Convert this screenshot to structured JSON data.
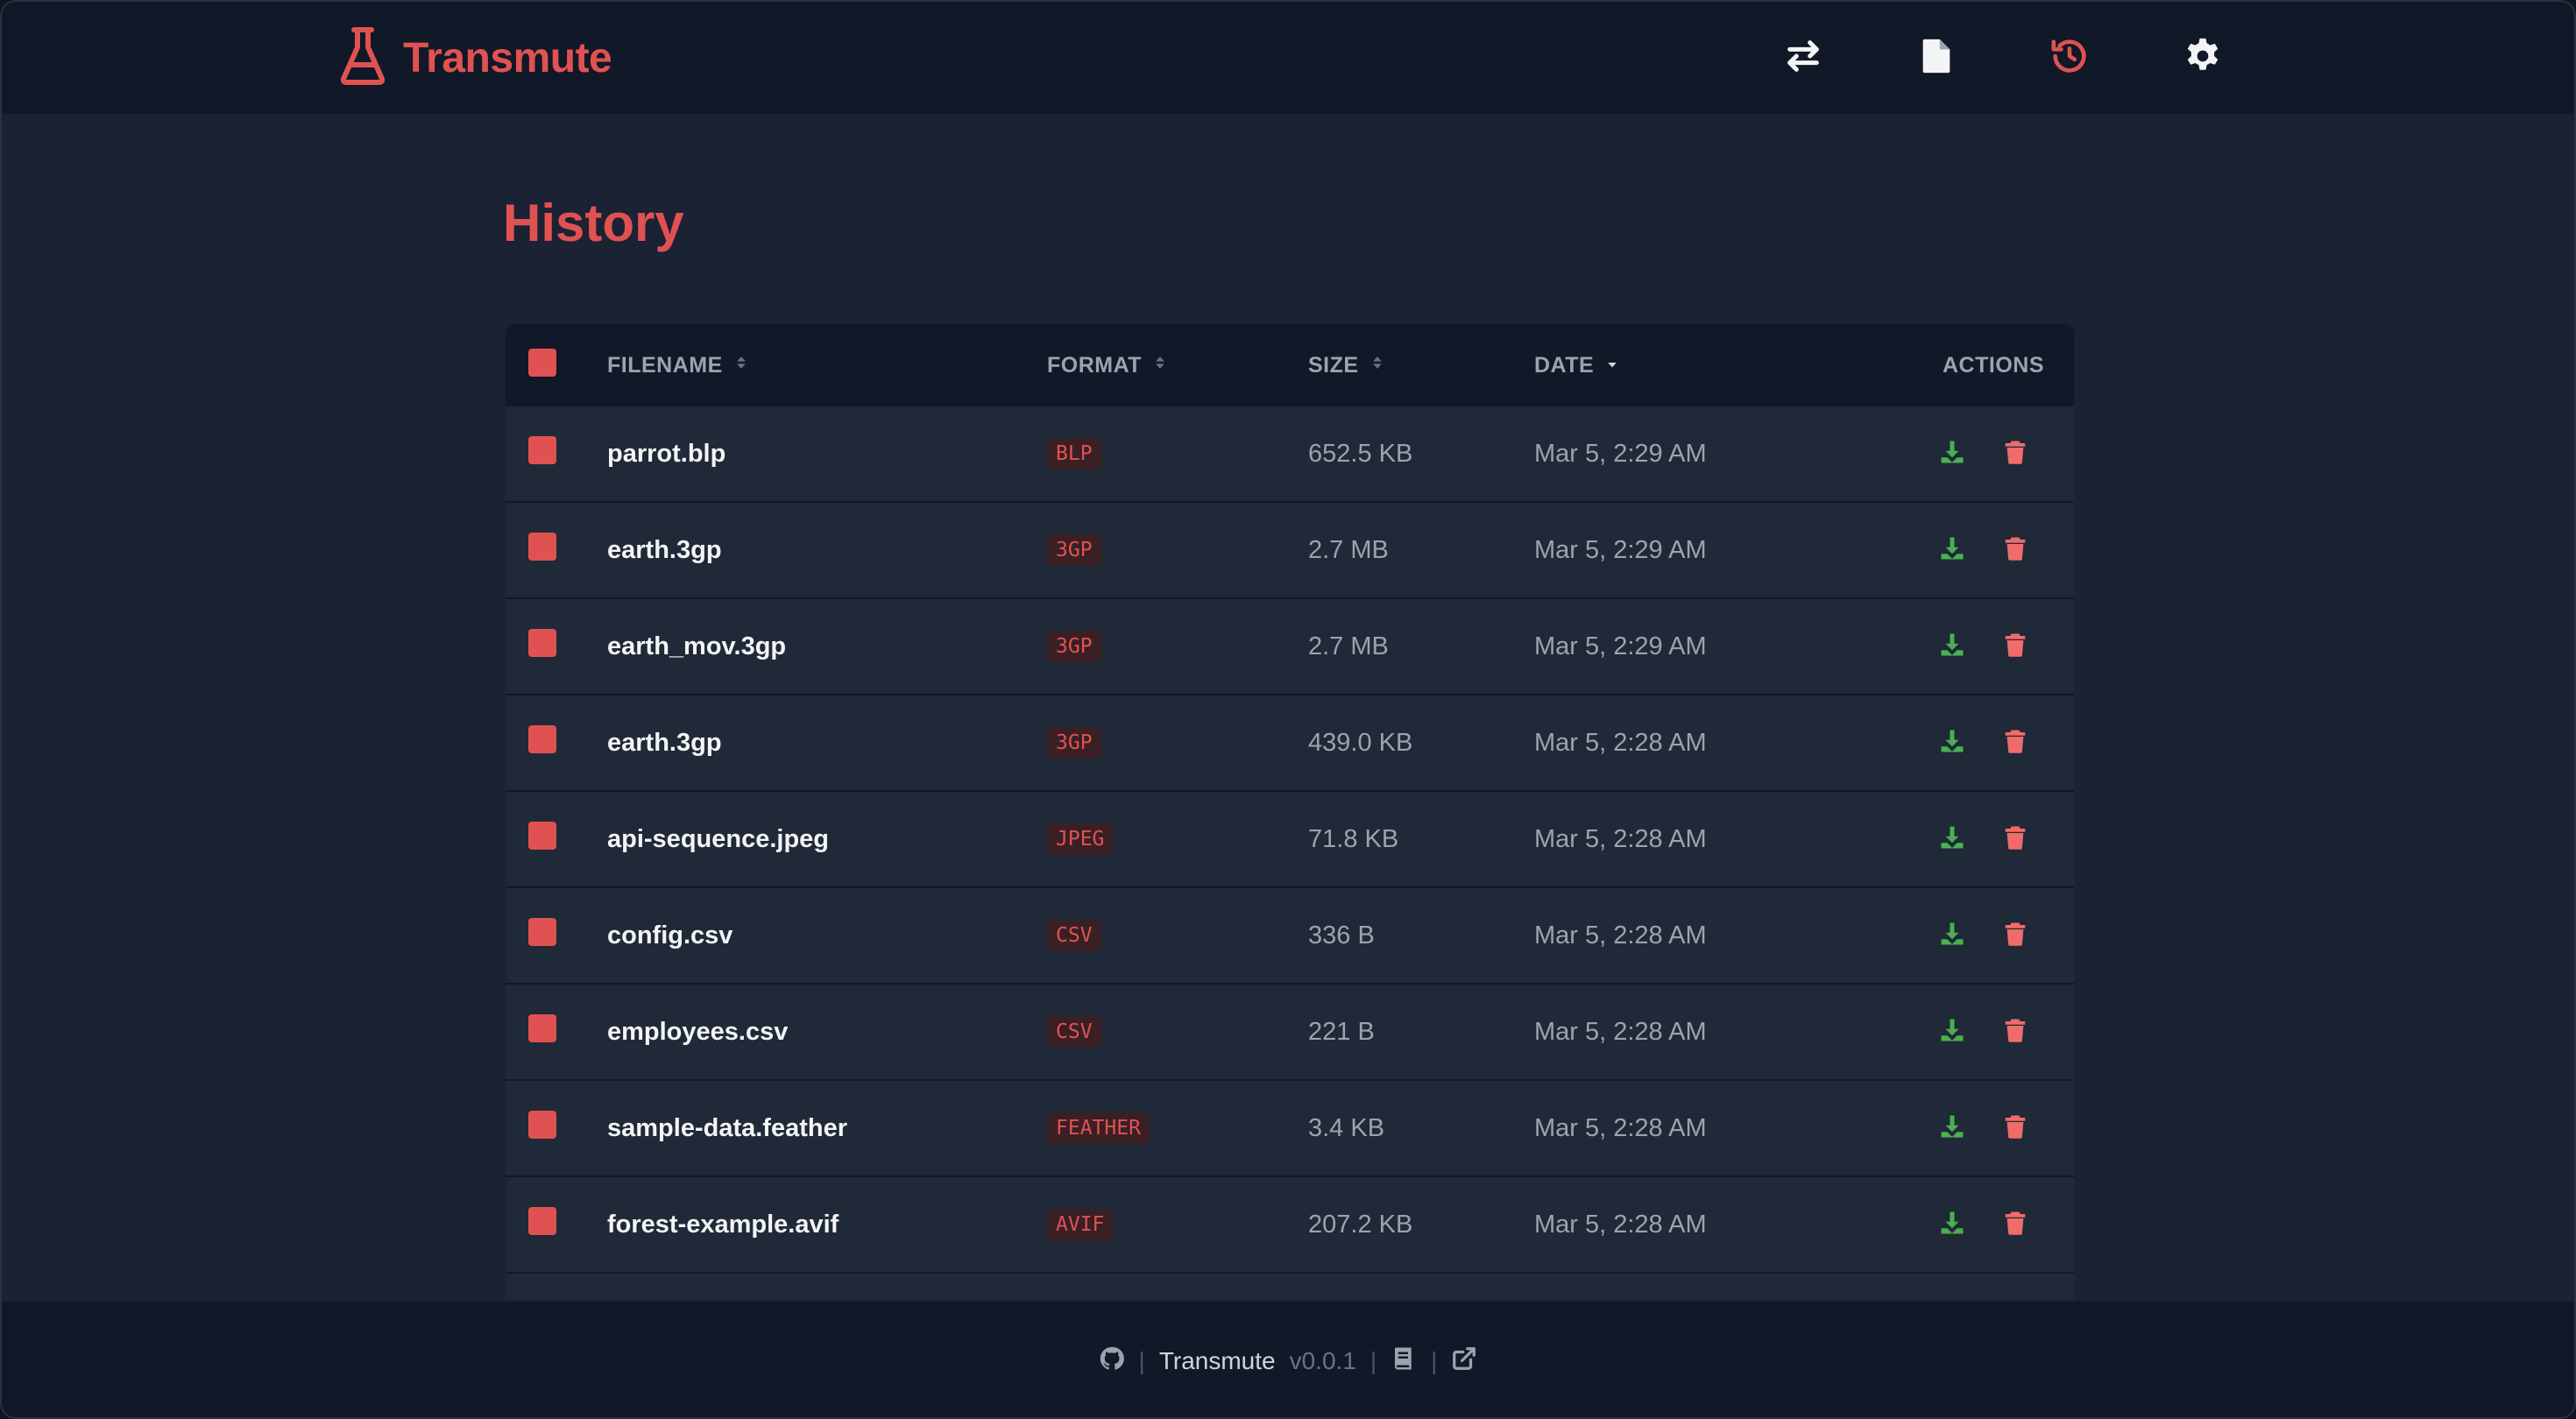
{
  "app": {
    "name": "Transmute"
  },
  "nav": {
    "icons": [
      "swap-icon",
      "file-icon",
      "history-icon",
      "gear-icon"
    ],
    "active": "history-icon"
  },
  "page": {
    "title": "History"
  },
  "table": {
    "columns": {
      "filename": "FILENAME",
      "format": "FORMAT",
      "size": "SIZE",
      "date": "DATE",
      "actions": "ACTIONS"
    },
    "rows": [
      {
        "filename": "parrot.blp",
        "format": "BLP",
        "size": "652.5 KB",
        "date": "Mar 5, 2:29 AM"
      },
      {
        "filename": "earth.3gp",
        "format": "3GP",
        "size": "2.7 MB",
        "date": "Mar 5, 2:29 AM"
      },
      {
        "filename": "earth_mov.3gp",
        "format": "3GP",
        "size": "2.7 MB",
        "date": "Mar 5, 2:29 AM"
      },
      {
        "filename": "earth.3gp",
        "format": "3GP",
        "size": "439.0 KB",
        "date": "Mar 5, 2:28 AM"
      },
      {
        "filename": "api-sequence.jpeg",
        "format": "JPEG",
        "size": "71.8 KB",
        "date": "Mar 5, 2:28 AM"
      },
      {
        "filename": "config.csv",
        "format": "CSV",
        "size": "336 B",
        "date": "Mar 5, 2:28 AM"
      },
      {
        "filename": "employees.csv",
        "format": "CSV",
        "size": "221 B",
        "date": "Mar 5, 2:28 AM"
      },
      {
        "filename": "sample-data.feather",
        "format": "FEATHER",
        "size": "3.4 KB",
        "date": "Mar 5, 2:28 AM"
      },
      {
        "filename": "forest-example.avif",
        "format": "AVIF",
        "size": "207.2 KB",
        "date": "Mar 5, 2:28 AM"
      }
    ]
  },
  "footer": {
    "sep1": "|",
    "name": "Transmute",
    "version": "v0.0.1",
    "sep2": "|",
    "sep3": "|"
  },
  "colors": {
    "accent": "#e05252",
    "download": "#4caf50",
    "delete": "#f06b6b",
    "background": "#1a2233",
    "header": "#111827"
  }
}
